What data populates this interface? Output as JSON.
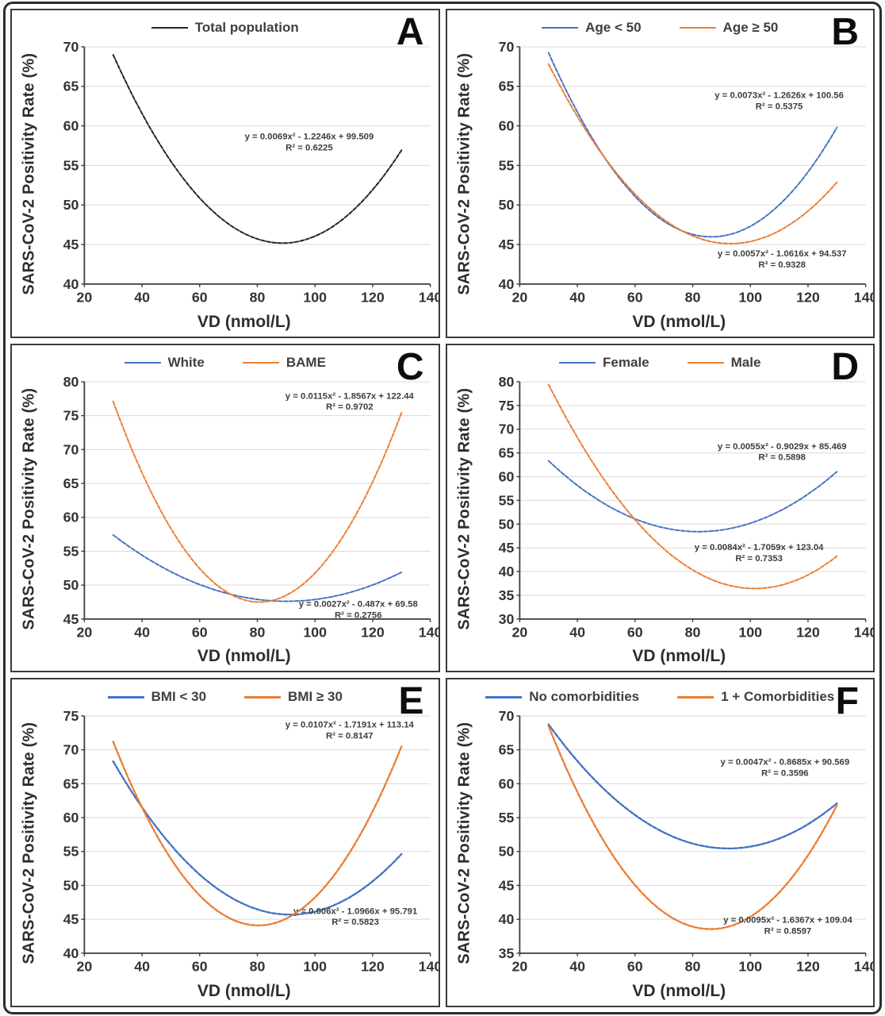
{
  "figure": {
    "panel_count": 6
  },
  "chart_data": [
    {
      "letter": "A",
      "type": "line",
      "xlabel": "VD (nmol/L)",
      "ylabel": "SARS-CoV-2 Positivity Rate (%)",
      "xlim": [
        20,
        140
      ],
      "ylim": [
        40,
        70
      ],
      "xticks": [
        20,
        40,
        60,
        80,
        100,
        120,
        140
      ],
      "yticks": [
        40,
        45,
        50,
        55,
        60,
        65,
        70
      ],
      "x_data_range": [
        30,
        130
      ],
      "grid": "horizontal",
      "legend_position": "top-center",
      "legend_line_weight": 2.2,
      "curve_weight": 2,
      "series": [
        {
          "name": "Total population",
          "color": "#20242c",
          "style": "dashed",
          "quadratic": {
            "a": 0.0069,
            "b": -1.2246,
            "c": 99.509
          },
          "equation_label": "y = 0.0069x² - 1.2246x + 99.509",
          "r2_label": "R² = 0.6225",
          "eq_pos": [
            98,
            58.3
          ]
        }
      ]
    },
    {
      "letter": "B",
      "type": "line",
      "xlabel": "VD (nmol/L)",
      "ylabel": "SARS-CoV-2 Positivity Rate (%)",
      "xlim": [
        20,
        140
      ],
      "ylim": [
        40,
        70
      ],
      "xticks": [
        20,
        40,
        60,
        80,
        100,
        120,
        140
      ],
      "yticks": [
        40,
        45,
        50,
        55,
        60,
        65,
        70
      ],
      "x_data_range": [
        30,
        130
      ],
      "grid": "horizontal",
      "legend_position": "top-center",
      "legend_line_weight": 2.2,
      "curve_weight": 2,
      "series": [
        {
          "name": "Age < 50",
          "color": "#4472C4",
          "style": "dashed",
          "quadratic": {
            "a": 0.0073,
            "b": -1.2626,
            "c": 100.56
          },
          "equation_label": "y = 0.0073x² - 1.2626x + 100.56",
          "r2_label": "R² = 0.5375",
          "eq_pos": [
            110,
            63.5
          ]
        },
        {
          "name": "Age ≥ 50",
          "color": "#ED7D31",
          "style": "dashed",
          "quadratic": {
            "a": 0.0057,
            "b": -1.0616,
            "c": 94.537
          },
          "equation_label": "y = 0.0057x² - 1.0616x + 94.537",
          "r2_label": "R² = 0.9328",
          "eq_pos": [
            111,
            43.5
          ]
        }
      ]
    },
    {
      "letter": "C",
      "type": "line",
      "xlabel": "VD (nmol/L)",
      "ylabel": "SARS-CoV-2 Positivity Rate (%)",
      "xlim": [
        20,
        140
      ],
      "ylim": [
        45,
        80
      ],
      "xticks": [
        20,
        40,
        60,
        80,
        100,
        120,
        140
      ],
      "yticks": [
        45,
        50,
        55,
        60,
        65,
        70,
        75,
        80
      ],
      "x_data_range": [
        30,
        130
      ],
      "grid": "horizontal",
      "legend_position": "top-center",
      "legend_line_weight": 2.2,
      "curve_weight": 2,
      "series": [
        {
          "name": "White",
          "color": "#4472C4",
          "style": "dashed",
          "quadratic": {
            "a": 0.0027,
            "b": -0.487,
            "c": 69.58
          },
          "equation_label": "y = 0.0027x² - 0.487x + 69.58",
          "r2_label": "R² = 0.2756",
          "eq_pos": [
            115,
            46.8
          ]
        },
        {
          "name": "BAME",
          "color": "#ED7D31",
          "style": "dashed",
          "quadratic": {
            "a": 0.0115,
            "b": -1.8567,
            "c": 122.44
          },
          "equation_label": "y = 0.0115x² - 1.8567x + 122.44",
          "r2_label": "R² = 0.9702",
          "eq_pos": [
            112,
            77.5
          ]
        }
      ]
    },
    {
      "letter": "D",
      "type": "line",
      "xlabel": "VD (nmol/L)",
      "ylabel": "SARS-CoV-2 Positivity Rate (%)",
      "xlim": [
        20,
        140
      ],
      "ylim": [
        30,
        80
      ],
      "xticks": [
        20,
        40,
        60,
        80,
        100,
        120,
        140
      ],
      "yticks": [
        30,
        35,
        40,
        45,
        50,
        55,
        60,
        65,
        70,
        75,
        80
      ],
      "x_data_range": [
        30,
        130
      ],
      "grid": "horizontal",
      "legend_position": "top-center",
      "legend_line_weight": 2.2,
      "curve_weight": 2,
      "series": [
        {
          "name": "Female",
          "color": "#4472C4",
          "style": "dashed",
          "quadratic": {
            "a": 0.0055,
            "b": -0.9029,
            "c": 85.469
          },
          "equation_label": "y = 0.0055x² - 0.9029x + 85.469",
          "r2_label": "R² = 0.5898",
          "eq_pos": [
            111,
            65.8
          ]
        },
        {
          "name": "Male",
          "color": "#ED7D31",
          "style": "dashed",
          "quadratic": {
            "a": 0.0084,
            "b": -1.7059,
            "c": 123.04
          },
          "equation_label": "y = 0.0084x² - 1.7059x + 123.04",
          "r2_label": "R² = 0.7353",
          "eq_pos": [
            103,
            44.5
          ]
        }
      ]
    },
    {
      "letter": "E",
      "type": "line",
      "xlabel": "VD (nmol/L)",
      "ylabel": "SARS-CoV-2 Positivity Rate (%)",
      "xlim": [
        20,
        140
      ],
      "ylim": [
        40,
        75
      ],
      "xticks": [
        20,
        40,
        60,
        80,
        100,
        120,
        140
      ],
      "yticks": [
        40,
        45,
        50,
        55,
        60,
        65,
        70,
        75
      ],
      "x_data_range": [
        30,
        130
      ],
      "grid": "horizontal",
      "legend_position": "top-center",
      "legend_line_weight": 3.4,
      "curve_weight": 2.4,
      "series": [
        {
          "name": "BMI < 30",
          "color": "#4472C4",
          "style": "dashed",
          "quadratic": {
            "a": 0.006,
            "b": -1.0966,
            "c": 95.791
          },
          "equation_label": "y = 0.006x² - 1.0966x + 95.791",
          "r2_label": "R² = 0.5823",
          "eq_pos": [
            114,
            45.8
          ]
        },
        {
          "name": "BMI ≥ 30",
          "color": "#ED7D31",
          "style": "dashed",
          "quadratic": {
            "a": 0.0107,
            "b": -1.7191,
            "c": 113.14
          },
          "equation_label": "y = 0.0107x² - 1.7191x + 113.14",
          "r2_label": "R² = 0.8147",
          "eq_pos": [
            112,
            73.3
          ]
        }
      ]
    },
    {
      "letter": "F",
      "type": "line",
      "xlabel": "VD (nmol/L)",
      "ylabel": "SARS-CoV-2 Positivity Rate (%)",
      "xlim": [
        20,
        140
      ],
      "ylim": [
        35,
        70
      ],
      "xticks": [
        20,
        40,
        60,
        80,
        100,
        120,
        140
      ],
      "yticks": [
        35,
        40,
        45,
        50,
        55,
        60,
        65,
        70
      ],
      "x_data_range": [
        30,
        130
      ],
      "grid": "horizontal",
      "legend_position": "top-center",
      "legend_line_weight": 3.4,
      "curve_weight": 2.4,
      "series": [
        {
          "name": "No comorbidities",
          "color": "#4472C4",
          "style": "dashed",
          "quadratic": {
            "a": 0.0047,
            "b": -0.8685,
            "c": 90.569
          },
          "equation_label": "y = 0.0047x² - 0.8685x + 90.569",
          "r2_label": "R² = 0.3596",
          "eq_pos": [
            112,
            62.8
          ]
        },
        {
          "name": "1 + Comorbidities",
          "color": "#ED7D31",
          "style": "dashed",
          "quadratic": {
            "a": 0.0095,
            "b": -1.6367,
            "c": 109.04
          },
          "equation_label": "y = 0.0095x² - 1.6367x + 109.04",
          "r2_label": "R² = 0.8597",
          "eq_pos": [
            113,
            39.5
          ]
        }
      ]
    }
  ]
}
